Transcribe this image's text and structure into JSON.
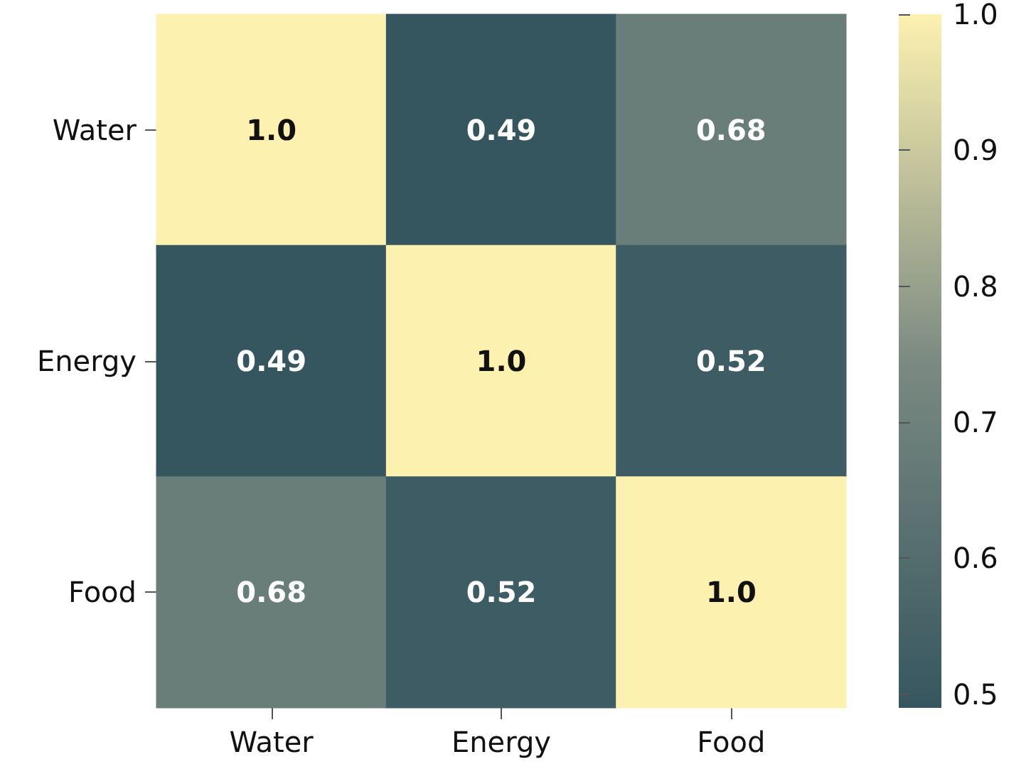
{
  "chart_data": {
    "type": "heatmap",
    "categories": [
      "Water",
      "Energy",
      "Food"
    ],
    "y_categories": [
      "Water",
      "Energy",
      "Food"
    ],
    "cells": [
      [
        1,
        0.49,
        0.68
      ],
      [
        0.49,
        1,
        0.52
      ],
      [
        0.68,
        0.52,
        1
      ]
    ],
    "cell_labels": [
      [
        "1.0",
        "0.49",
        "0.68"
      ],
      [
        "0.49",
        "1.0",
        "0.52"
      ],
      [
        "0.68",
        "0.52",
        "1.0"
      ]
    ],
    "clim": [
      0.49,
      1
    ],
    "cticks": [
      0.5,
      0.6,
      0.7,
      0.8,
      0.9,
      {
        "value": 1,
        "label": "1.0"
      }
    ]
  }
}
